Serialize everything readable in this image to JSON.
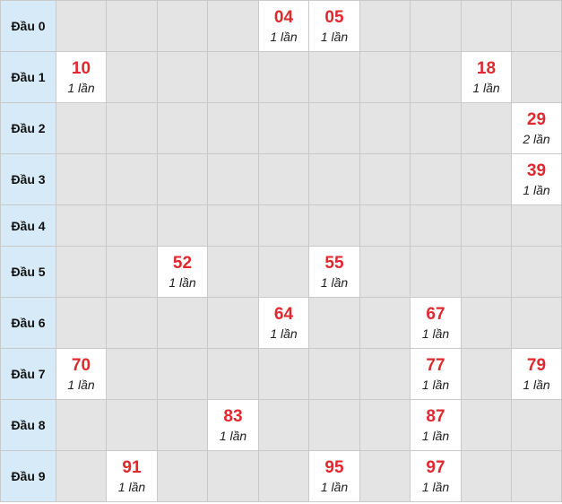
{
  "rows": [
    {
      "label": "Đầu 0",
      "cells": [
        null,
        null,
        null,
        null,
        {
          "num": "04",
          "count": "1 lần"
        },
        {
          "num": "05",
          "count": "1 lần"
        },
        null,
        null,
        null,
        null
      ]
    },
    {
      "label": "Đầu 1",
      "cells": [
        {
          "num": "10",
          "count": "1 lần"
        },
        null,
        null,
        null,
        null,
        null,
        null,
        null,
        {
          "num": "18",
          "count": "1 lần"
        },
        null
      ]
    },
    {
      "label": "Đầu 2",
      "cells": [
        null,
        null,
        null,
        null,
        null,
        null,
        null,
        null,
        null,
        {
          "num": "29",
          "count": "2 lần"
        }
      ]
    },
    {
      "label": "Đầu 3",
      "cells": [
        null,
        null,
        null,
        null,
        null,
        null,
        null,
        null,
        null,
        {
          "num": "39",
          "count": "1 lần"
        }
      ]
    },
    {
      "label": "Đầu 4",
      "cells": [
        null,
        null,
        null,
        null,
        null,
        null,
        null,
        null,
        null,
        null
      ]
    },
    {
      "label": "Đầu 5",
      "cells": [
        null,
        null,
        {
          "num": "52",
          "count": "1 lần"
        },
        null,
        null,
        {
          "num": "55",
          "count": "1 lần"
        },
        null,
        null,
        null,
        null
      ]
    },
    {
      "label": "Đầu 6",
      "cells": [
        null,
        null,
        null,
        null,
        {
          "num": "64",
          "count": "1 lần"
        },
        null,
        null,
        {
          "num": "67",
          "count": "1 lần"
        },
        null,
        null
      ]
    },
    {
      "label": "Đầu 7",
      "cells": [
        {
          "num": "70",
          "count": "1 lần"
        },
        null,
        null,
        null,
        null,
        null,
        null,
        {
          "num": "77",
          "count": "1 lần"
        },
        null,
        {
          "num": "79",
          "count": "1 lần"
        }
      ]
    },
    {
      "label": "Đầu 8",
      "cells": [
        null,
        null,
        null,
        {
          "num": "83",
          "count": "1 lần"
        },
        null,
        null,
        null,
        {
          "num": "87",
          "count": "1 lần"
        },
        null,
        null
      ]
    },
    {
      "label": "Đầu 9",
      "cells": [
        null,
        {
          "num": "91",
          "count": "1 lần"
        },
        null,
        null,
        null,
        {
          "num": "95",
          "count": "1 lần"
        },
        null,
        {
          "num": "97",
          "count": "1 lần"
        },
        null,
        null
      ]
    }
  ]
}
